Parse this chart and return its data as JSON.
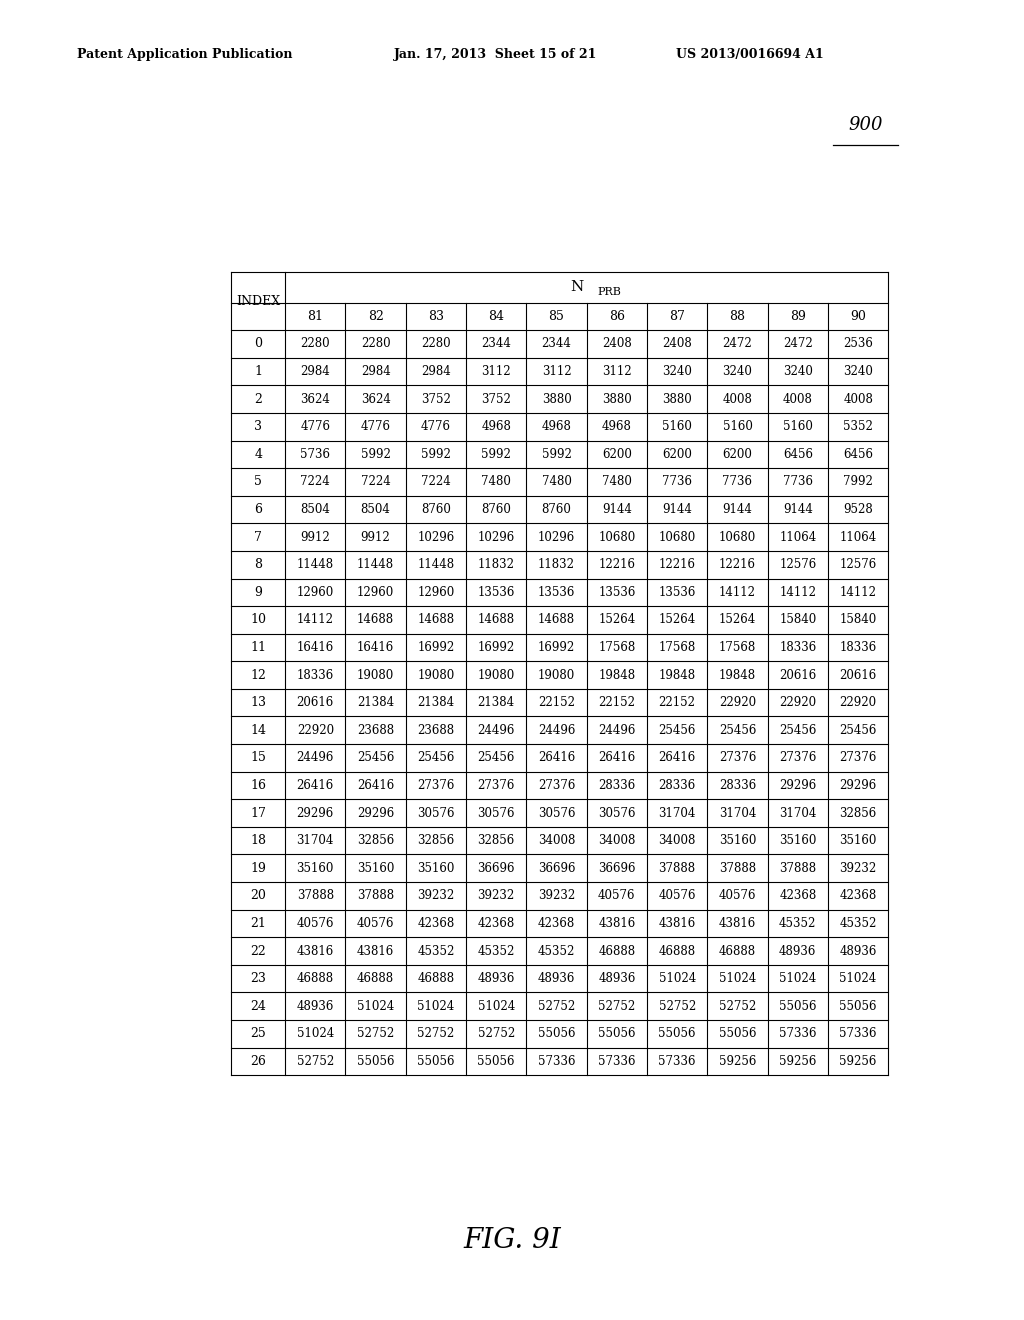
{
  "header_left": "Patent Application Publication",
  "header_mid": "Jan. 17, 2013  Sheet 15 of 21",
  "header_right": "US 2013/0016694 A1",
  "figure_number": "900",
  "figure_label": "FIG. 9I",
  "col_header_main": "N",
  "col_header_sub": "PRB",
  "index_col": "INDEX",
  "columns": [
    81,
    82,
    83,
    84,
    85,
    86,
    87,
    88,
    89,
    90
  ],
  "rows": [
    [
      0,
      2280,
      2280,
      2280,
      2344,
      2344,
      2408,
      2408,
      2472,
      2472,
      2536
    ],
    [
      1,
      2984,
      2984,
      2984,
      3112,
      3112,
      3112,
      3240,
      3240,
      3240,
      3240
    ],
    [
      2,
      3624,
      3624,
      3752,
      3752,
      3880,
      3880,
      3880,
      4008,
      4008,
      4008
    ],
    [
      3,
      4776,
      4776,
      4776,
      4968,
      4968,
      4968,
      5160,
      5160,
      5160,
      5352
    ],
    [
      4,
      5736,
      5992,
      5992,
      5992,
      5992,
      6200,
      6200,
      6200,
      6456,
      6456
    ],
    [
      5,
      7224,
      7224,
      7224,
      7480,
      7480,
      7480,
      7736,
      7736,
      7736,
      7992
    ],
    [
      6,
      8504,
      8504,
      8760,
      8760,
      8760,
      9144,
      9144,
      9144,
      9144,
      9528
    ],
    [
      7,
      9912,
      9912,
      10296,
      10296,
      10296,
      10680,
      10680,
      10680,
      11064,
      11064
    ],
    [
      8,
      11448,
      11448,
      11448,
      11832,
      11832,
      12216,
      12216,
      12216,
      12576,
      12576
    ],
    [
      9,
      12960,
      12960,
      12960,
      13536,
      13536,
      13536,
      13536,
      14112,
      14112,
      14112
    ],
    [
      10,
      14112,
      14688,
      14688,
      14688,
      14688,
      15264,
      15264,
      15264,
      15840,
      15840
    ],
    [
      11,
      16416,
      16416,
      16992,
      16992,
      16992,
      17568,
      17568,
      17568,
      18336,
      18336
    ],
    [
      12,
      18336,
      19080,
      19080,
      19080,
      19080,
      19848,
      19848,
      19848,
      20616,
      20616
    ],
    [
      13,
      20616,
      21384,
      21384,
      21384,
      22152,
      22152,
      22152,
      22920,
      22920,
      22920
    ],
    [
      14,
      22920,
      23688,
      23688,
      24496,
      24496,
      24496,
      25456,
      25456,
      25456,
      25456
    ],
    [
      15,
      24496,
      25456,
      25456,
      25456,
      26416,
      26416,
      26416,
      27376,
      27376,
      27376
    ],
    [
      16,
      26416,
      26416,
      27376,
      27376,
      27376,
      28336,
      28336,
      28336,
      29296,
      29296
    ],
    [
      17,
      29296,
      29296,
      30576,
      30576,
      30576,
      30576,
      31704,
      31704,
      31704,
      32856
    ],
    [
      18,
      31704,
      32856,
      32856,
      32856,
      34008,
      34008,
      34008,
      35160,
      35160,
      35160
    ],
    [
      19,
      35160,
      35160,
      35160,
      36696,
      36696,
      36696,
      37888,
      37888,
      37888,
      39232
    ],
    [
      20,
      37888,
      37888,
      39232,
      39232,
      39232,
      40576,
      40576,
      40576,
      42368,
      42368
    ],
    [
      21,
      40576,
      40576,
      42368,
      42368,
      42368,
      43816,
      43816,
      43816,
      45352,
      45352
    ],
    [
      22,
      43816,
      43816,
      45352,
      45352,
      45352,
      46888,
      46888,
      46888,
      48936,
      48936
    ],
    [
      23,
      46888,
      46888,
      46888,
      48936,
      48936,
      48936,
      51024,
      51024,
      51024,
      51024
    ],
    [
      24,
      48936,
      51024,
      51024,
      51024,
      52752,
      52752,
      52752,
      52752,
      55056,
      55056
    ],
    [
      25,
      51024,
      52752,
      52752,
      52752,
      55056,
      55056,
      55056,
      55056,
      57336,
      57336
    ],
    [
      26,
      52752,
      55056,
      55056,
      55056,
      57336,
      57336,
      57336,
      59256,
      59256,
      59256
    ]
  ]
}
